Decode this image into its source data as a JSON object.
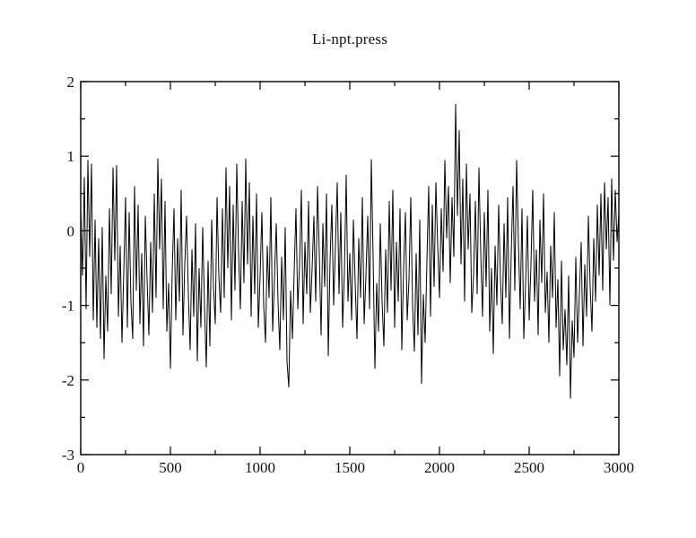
{
  "page": {
    "background": "#ffffff",
    "frame_color": "#000000"
  },
  "chart_data": {
    "type": "line",
    "title": "Li-npt.press",
    "series_name": "Li-npt.press",
    "series_color": "#000000",
    "grid": false,
    "legend": false,
    "x_axis": {
      "min": 0,
      "max": 3000,
      "major_ticks": [
        0,
        500,
        1000,
        1500,
        2000,
        2500,
        3000
      ],
      "tick_labels": [
        "0",
        "500",
        "1000",
        "1500",
        "2000",
        "2500",
        "3000"
      ],
      "minor_step": 250,
      "label": ""
    },
    "y_axis": {
      "min": -3,
      "max": 2,
      "major_ticks": [
        2,
        1,
        0,
        -1,
        -2,
        -3
      ],
      "tick_labels": [
        "2",
        "1",
        "0",
        "-1",
        "-2",
        "-3"
      ],
      "minor_step": 0.5,
      "label": ""
    },
    "x_start": 0,
    "x_step": 10,
    "values": [
      0.3,
      -0.6,
      0.72,
      -1.05,
      0.95,
      -0.35,
      0.9,
      -1.2,
      0.15,
      -1.3,
      -0.1,
      -1.45,
      0.05,
      -1.72,
      -0.6,
      -1.35,
      0.3,
      -0.85,
      0.85,
      -0.4,
      0.88,
      -1.15,
      -0.2,
      -1.5,
      -0.55,
      0.45,
      -1.3,
      0.25,
      -0.95,
      -1.45,
      0.6,
      -0.8,
      0.35,
      -1.25,
      -0.3,
      -1.55,
      0.2,
      -0.65,
      -1.4,
      -0.15,
      -1.1,
      0.5,
      -0.9,
      0.97,
      -0.25,
      0.7,
      -1.05,
      0.4,
      -1.35,
      -0.7,
      -1.85,
      -0.55,
      0.3,
      -1.2,
      -0.1,
      -0.95,
      0.55,
      -1.4,
      -0.45,
      0.2,
      -0.85,
      -1.6,
      -0.25,
      -1.15,
      0.1,
      -1.75,
      -0.5,
      -1.3,
      0.05,
      -1.0,
      -1.83,
      -0.4,
      -1.55,
      0.15,
      -0.75,
      -1.25,
      0.45,
      -0.6,
      -1.1,
      0.3,
      -0.9,
      0.85,
      -0.5,
      0.6,
      -1.2,
      0.35,
      -0.8,
      0.9,
      -0.3,
      -1.05,
      0.4,
      -0.7,
      0.97,
      -0.45,
      0.65,
      -1.15,
      0.2,
      -0.85,
      0.5,
      -1.3,
      -0.6,
      0.25,
      -1.0,
      -1.5,
      -0.2,
      -0.9,
      0.45,
      -1.35,
      -0.65,
      0.1,
      -0.95,
      -1.6,
      -0.35,
      -1.2,
      0.05,
      -1.75,
      -2.1,
      -0.8,
      -1.45,
      -0.55,
      0.3,
      -1.05,
      -0.45,
      0.55,
      -1.25,
      -0.15,
      -0.85,
      0.4,
      -1.1,
      -0.5,
      0.2,
      -0.95,
      0.6,
      -0.3,
      -1.4,
      0.1,
      -0.75,
      0.5,
      -1.68,
      -0.4,
      0.35,
      -1.0,
      -0.2,
      0.65,
      -0.85,
      0.25,
      -1.3,
      -0.55,
      0.75,
      -0.95,
      -0.3,
      -1.2,
      0.15,
      -0.7,
      -1.45,
      -0.1,
      -0.9,
      0.45,
      -1.25,
      -0.6,
      0.2,
      -1.05,
      0.96,
      -0.35,
      -1.85,
      -0.7,
      -1.35,
      0.1,
      -0.95,
      -1.55,
      -0.25,
      -1.1,
      0.4,
      -0.8,
      0.55,
      -1.3,
      -0.15,
      -0.95,
      0.3,
      -1.6,
      -0.5,
      0.25,
      -1.2,
      -0.65,
      0.45,
      -1.0,
      -1.62,
      -0.3,
      -1.4,
      0.15,
      -2.05,
      -0.85,
      -1.5,
      -0.4,
      0.6,
      -1.15,
      0.35,
      -0.75,
      0.65,
      -0.2,
      -0.9,
      0.3,
      -0.55,
      0.95,
      -0.1,
      0.6,
      -0.7,
      0.45,
      -0.35,
      1.7,
      0.2,
      1.35,
      -0.45,
      0.7,
      -0.95,
      0.9,
      -0.25,
      0.5,
      -1.1,
      -0.6,
      0.4,
      -0.85,
      0.85,
      -0.3,
      -1.15,
      0.25,
      -0.75,
      0.55,
      -1.35,
      -0.5,
      -1.65,
      -0.2,
      -1.0,
      0.35,
      -0.65,
      -1.25,
      0.1,
      -0.9,
      0.45,
      -1.45,
      -0.3,
      0.6,
      -0.8,
      0.95,
      -0.15,
      -1.05,
      0.3,
      -1.45,
      -0.7,
      0.2,
      -1.2,
      -0.45,
      0.55,
      -0.95,
      -0.25,
      -1.4,
      0.15,
      -0.7,
      0.5,
      -1.1,
      -0.55,
      -1.5,
      -0.2,
      -0.9,
      0.25,
      -1.3,
      -0.65,
      -1.95,
      -0.4,
      -1.6,
      -1.05,
      -1.8,
      -0.6,
      -2.25,
      -1.2,
      -1.7,
      -0.35,
      -1.5,
      -0.85,
      -0.15,
      -1.55,
      -0.45,
      -1.15,
      0.2,
      -0.75,
      -1.35,
      -0.1,
      -0.95,
      0.35,
      -0.6,
      0.5,
      -0.8,
      0.65,
      -0.25,
      0.45,
      -1.0,
      0.7,
      -0.4,
      0.55,
      -0.15,
      0.25
    ]
  }
}
